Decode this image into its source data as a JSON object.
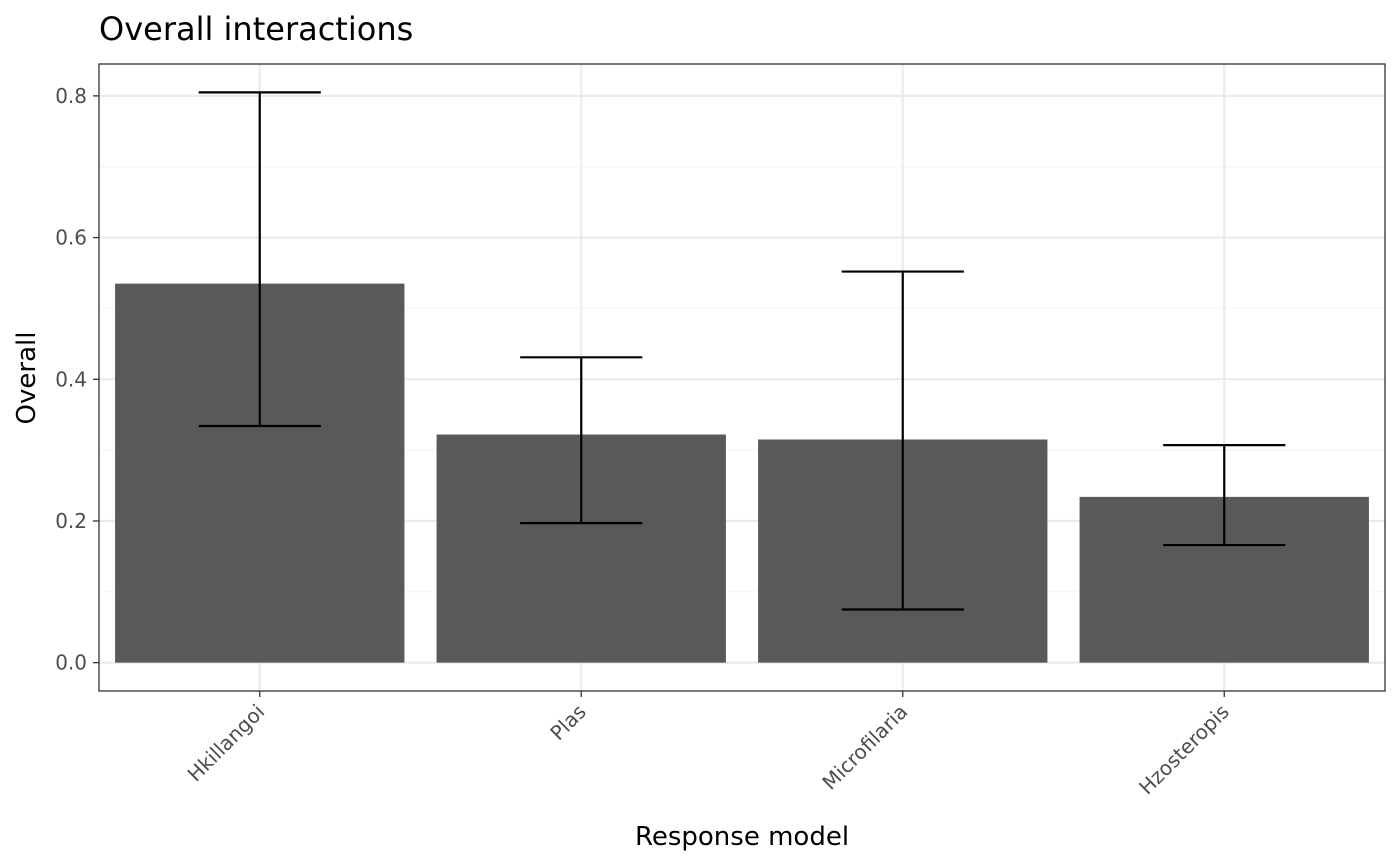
{
  "chart_data": {
    "type": "bar",
    "title": "Overall interactions",
    "xlabel": "Response model",
    "ylabel": "Overall",
    "categories": [
      "Hkillangoi",
      "Plas",
      "Microfilaria",
      "Hzosteropis"
    ],
    "values": [
      0.535,
      0.322,
      0.315,
      0.234
    ],
    "error_lower": [
      0.334,
      0.197,
      0.075,
      0.166
    ],
    "error_upper": [
      0.805,
      0.431,
      0.552,
      0.307
    ],
    "ylim": [
      -0.04,
      0.845
    ],
    "yticks": [
      0.0,
      0.2,
      0.4,
      0.6,
      0.8
    ],
    "ytick_labels": [
      "0.0",
      "0.2",
      "0.4",
      "0.6",
      "0.8"
    ],
    "grid": true,
    "legend": "none",
    "colors": {
      "bar": "#595959",
      "errorbar": "#000000",
      "grid_major": "#ebebeb",
      "grid_minor": "#f5f5f5",
      "panel_border": "#333333",
      "tick_text": "#4d4d4d"
    }
  }
}
